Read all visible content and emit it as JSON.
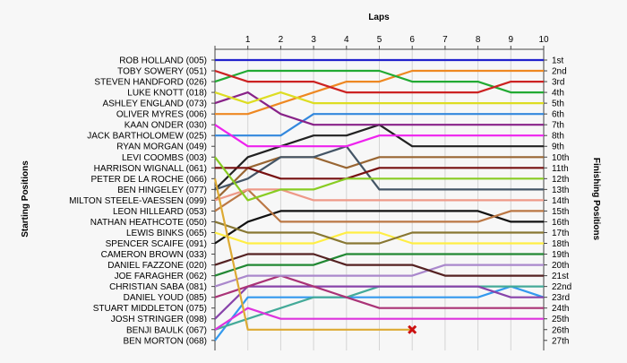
{
  "chart_data": {
    "type": "line",
    "title": "Laps",
    "xlabel": "Laps",
    "ylabel_left": "Starting Positions",
    "ylabel_right": "Finishing Positions",
    "x": [
      0,
      1,
      2,
      3,
      4,
      5,
      6,
      7,
      8,
      9,
      10
    ],
    "x_tick_labels": [
      "",
      "1",
      "2",
      "3",
      "4",
      "5",
      "6",
      "7",
      "8",
      "9",
      "10"
    ],
    "position_labels": [
      "1st",
      "2nd",
      "3rd",
      "4th",
      "5th",
      "6th",
      "7th",
      "8th",
      "9th",
      "10th",
      "11th",
      "12th",
      "13th",
      "14th",
      "15th",
      "16th",
      "17th",
      "18th",
      "19th",
      "20th",
      "21st",
      "22nd",
      "23rd",
      "24th",
      "25th",
      "26th",
      "27th"
    ],
    "grid": "vertical",
    "series": [
      {
        "name": "ROB HOLLAND (005)",
        "color": "#2222cc",
        "positions": [
          1,
          1,
          1,
          1,
          1,
          1,
          1,
          1,
          1,
          1,
          1
        ]
      },
      {
        "name": "TOBY SOWERY (051)",
        "color": "#cc2222",
        "positions": [
          2,
          3,
          3,
          3,
          4,
          4,
          4,
          4,
          4,
          3,
          3
        ]
      },
      {
        "name": "STEVEN HANDFORD (026)",
        "color": "#22aa33",
        "positions": [
          3,
          2,
          2,
          2,
          2,
          2,
          3,
          3,
          3,
          4,
          4
        ]
      },
      {
        "name": "LUKE KNOTT (018)",
        "color": "#dddd22",
        "positions": [
          4,
          5,
          4,
          5,
          5,
          5,
          5,
          5,
          5,
          5,
          5
        ]
      },
      {
        "name": "ASHLEY ENGLAND (073)",
        "color": "#882288",
        "positions": [
          5,
          4,
          6,
          7,
          7,
          7,
          7,
          7,
          7,
          7,
          7
        ]
      },
      {
        "name": "OLIVER MYRES (006)",
        "color": "#ee8822",
        "positions": [
          6,
          6,
          5,
          4,
          3,
          3,
          2,
          2,
          2,
          2,
          2
        ]
      },
      {
        "name": "KAAN ONDER (030)",
        "color": "#ee22ee",
        "positions": [
          7,
          9,
          9,
          9,
          9,
          8,
          8,
          8,
          8,
          8,
          8
        ]
      },
      {
        "name": "JACK BARTHOLOMEW (025)",
        "color": "#3388dd",
        "positions": [
          8,
          8,
          8,
          6,
          6,
          6,
          6,
          6,
          6,
          6,
          6
        ]
      },
      {
        "name": "RYAN MORGAN (049)",
        "color": "#222222",
        "positions": [
          13,
          10,
          9,
          8,
          8,
          7,
          9,
          9,
          9,
          9,
          9
        ]
      },
      {
        "name": "LEVI COOMBS (003)",
        "color": "#996633",
        "positions": [
          14,
          11,
          10,
          10,
          11,
          10,
          10,
          10,
          10,
          10,
          10
        ]
      },
      {
        "name": "HARRISON WIGNALL (061)",
        "color": "#771111",
        "positions": [
          11,
          11,
          12,
          12,
          12,
          11,
          11,
          11,
          11,
          11,
          11
        ]
      },
      {
        "name": "PETER DE LA ROCHE (066)",
        "color": "#88cc22",
        "positions": [
          10,
          14,
          13,
          13,
          12,
          12,
          12,
          12,
          12,
          12,
          12
        ]
      },
      {
        "name": "BEN HINGELEY (077)",
        "color": "#445566",
        "positions": [
          13,
          12,
          10,
          10,
          9,
          13,
          13,
          13,
          13,
          13,
          13
        ]
      },
      {
        "name": "MILTON STEELE-VAESSEN (099)",
        "color": "#ee9988",
        "positions": [
          14,
          13,
          13,
          14,
          14,
          14,
          14,
          14,
          14,
          14,
          14
        ]
      },
      {
        "name": "LEON HILLEARD (053)",
        "color": "#bb7744",
        "positions": [
          15,
          13,
          16,
          16,
          16,
          16,
          16,
          16,
          16,
          15,
          15
        ]
      },
      {
        "name": "NATHAN HEATHCOTE (050)",
        "color": "#111111",
        "positions": [
          18,
          16,
          15,
          15,
          15,
          15,
          15,
          15,
          15,
          16,
          16
        ]
      },
      {
        "name": "LEWIS BINKS (065)",
        "color": "#ffee44",
        "positions": [
          17,
          18,
          18,
          18,
          17,
          17,
          18,
          18,
          18,
          18,
          18
        ]
      },
      {
        "name": "SPENCER SCAIFE (091)",
        "color": "#887733",
        "positions": [
          16,
          17,
          17,
          17,
          18,
          18,
          17,
          17,
          17,
          17,
          17
        ]
      },
      {
        "name": "CAMERON BROWN (033)",
        "color": "#552222",
        "positions": [
          20,
          19,
          19,
          19,
          20,
          20,
          20,
          21,
          21,
          21,
          21
        ]
      },
      {
        "name": "DANIEL FAZZONE (020)",
        "color": "#228833",
        "positions": [
          21,
          20,
          20,
          20,
          19,
          19,
          19,
          19,
          19,
          19,
          19
        ]
      },
      {
        "name": "JOE FARAGHER (062)",
        "color": "#aa88cc",
        "positions": [
          22,
          21,
          21,
          21,
          21,
          21,
          21,
          20,
          20,
          20,
          20
        ]
      },
      {
        "name": "CHRISTIAN SABA (081)",
        "color": "#44aa99",
        "positions": [
          26,
          25,
          24,
          23,
          23,
          22,
          22,
          22,
          22,
          22,
          22
        ]
      },
      {
        "name": "DANIEL YOUD (085)",
        "color": "#aa3377",
        "positions": [
          23,
          22,
          21,
          22,
          23,
          24,
          24,
          24,
          24,
          24,
          24
        ]
      },
      {
        "name": "STUART MIDDLETON (075)",
        "color": "#8844aa",
        "positions": [
          25,
          22,
          22,
          22,
          22,
          22,
          22,
          22,
          22,
          23,
          23
        ]
      },
      {
        "name": "JOSH STRINGER (098)",
        "color": "#dd33dd",
        "positions": [
          26,
          24,
          25,
          25,
          25,
          25,
          25,
          25,
          25,
          25,
          25
        ]
      },
      {
        "name": "BENJI BAULK (067)",
        "color": "#ddaa33",
        "positions": [
          12,
          26,
          26,
          26,
          26,
          26,
          26
        ],
        "retired_lap": 6
      },
      {
        "name": "BEN MORTON (068)",
        "color": "#3399ee",
        "positions": [
          27,
          23,
          23,
          23,
          23,
          23,
          23,
          23,
          23,
          22,
          23
        ]
      }
    ]
  }
}
